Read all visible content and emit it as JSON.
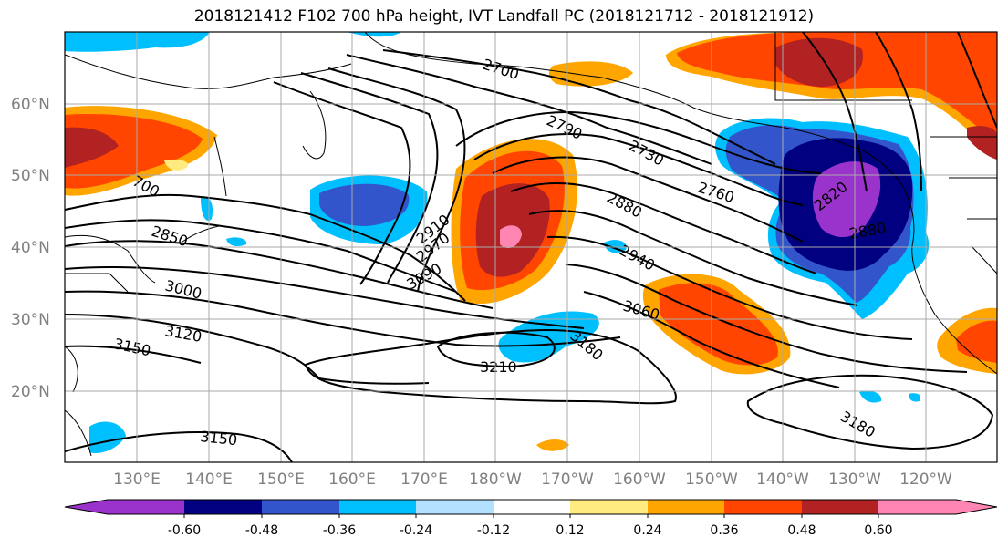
{
  "title": "2018121412 F102 700 hPa height, IVT Landfall PC (2018121712 - 2018121912)",
  "lat_labels": [
    "60°N",
    "50°N",
    "40°N",
    "30°N",
    "20°N"
  ],
  "lon_labels": [
    "130°E",
    "140°E",
    "150°E",
    "160°E",
    "170°E",
    "180°W",
    "170°W",
    "160°W",
    "150°W",
    "140°W",
    "130°W",
    "120°W"
  ],
  "contour_labels": [
    "2700",
    "2790",
    "2730",
    "2760",
    "2880",
    "2940",
    "2910",
    "2970",
    "3090",
    "3000",
    "2850",
    "700",
    "3060",
    "3120",
    "3150",
    "3180",
    "3210",
    "3150",
    "3180",
    "2820",
    "2880"
  ],
  "colorbar": {
    "colors": [
      "#9933cc",
      "#000080",
      "#3355cc",
      "#00bfff",
      "#b3e0ff",
      "#ffffff",
      "#ffeb80",
      "#ffa500",
      "#ff4500",
      "#b22222",
      "#ff85b3"
    ],
    "tick_labels": [
      "-0.60",
      "-0.48",
      "-0.36",
      "-0.24",
      "-0.12",
      "0.12",
      "0.24",
      "0.36",
      "0.48",
      "0.60"
    ]
  }
}
